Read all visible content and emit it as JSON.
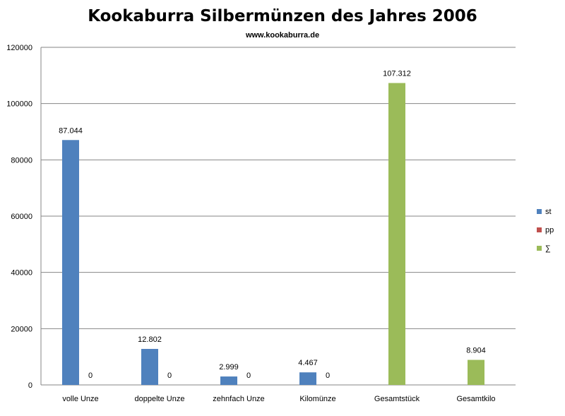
{
  "chart_data": {
    "type": "bar",
    "title": "Kookaburra Silbermünzen des Jahres 2006",
    "subtitle": "www.kookaburra.de",
    "categories": [
      "volle Unze",
      "doppelte Unze",
      "zehnfach Unze",
      "Kilomünze",
      "Gesamtstück",
      "Gesamtkilo"
    ],
    "series": [
      {
        "name": "st",
        "color": "#4F81BD",
        "values": [
          87044,
          12802,
          2999,
          4467,
          null,
          null
        ],
        "labels": [
          "87.044",
          "12.802",
          "2.999",
          "4.467",
          "",
          ""
        ]
      },
      {
        "name": "pp",
        "color": "#C0504D",
        "values": [
          0,
          0,
          0,
          0,
          null,
          null
        ],
        "labels": [
          "0",
          "0",
          "0",
          "0",
          "",
          ""
        ]
      },
      {
        "name": "∑",
        "color": "#9BBB59",
        "values": [
          null,
          null,
          null,
          null,
          107312,
          8904
        ],
        "labels": [
          "",
          "",
          "",
          "",
          "107.312",
          "8.904"
        ]
      }
    ],
    "ylim": [
      0,
      120000
    ],
    "yticks": [
      0,
      20000,
      40000,
      60000,
      80000,
      100000,
      120000
    ],
    "grid": true,
    "legend_position": "right"
  }
}
